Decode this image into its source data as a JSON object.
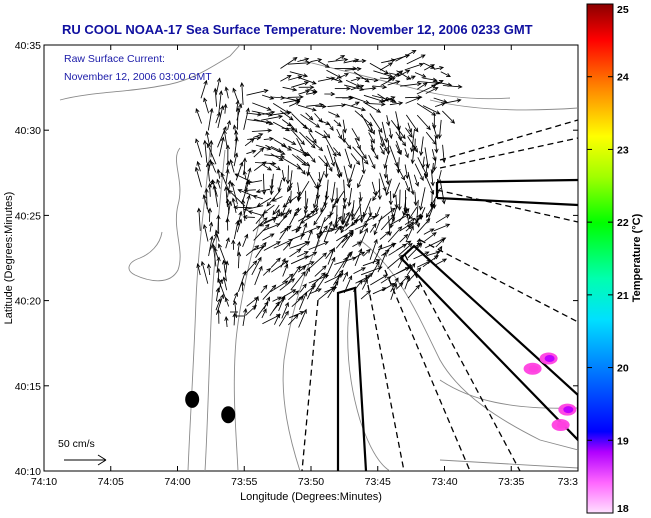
{
  "chart_data": {
    "type": "vector-field-map",
    "title": "RU COOL  NOAA-17  Sea Surface Temperature:  November 12, 2006 0233 GMT",
    "annotation": [
      "Raw Surface Current:",
      "November 12, 2006 03:00 GMT"
    ],
    "xlabel": "Longitude (Degrees:Minutes)",
    "ylabel": "Latitude (Degrees:Minutes)",
    "xlim": [
      -74.1667,
      -73.5
    ],
    "ylim": [
      40.1667,
      40.5833
    ],
    "x_ticks": [
      "74:10",
      "74:05",
      "74:00",
      "73:55",
      "73:50",
      "73:45",
      "73:40",
      "73:35",
      "73:3"
    ],
    "y_ticks": [
      "40:10",
      "40:15",
      "40:20",
      "40:25",
      "40:30",
      "40:35"
    ],
    "colorbar": {
      "label": "Temperature (°C)",
      "range": [
        18,
        25
      ],
      "ticks": [
        "18",
        "19",
        "20",
        "21",
        "22",
        "23",
        "24",
        "25"
      ]
    },
    "scale_arrow_label": "50 cm/s",
    "sst_patches": [
      {
        "lon": -73.5367,
        "lat": 40.2767,
        "temp_c": 18.6
      },
      {
        "lon": -73.5567,
        "lat": 40.2667,
        "temp_c": 18.4
      },
      {
        "lon": -73.5133,
        "lat": 40.2267,
        "temp_c": 18.8
      },
      {
        "lon": -73.5217,
        "lat": 40.2117,
        "temp_c": 18.4
      }
    ],
    "buoys": [
      {
        "lon": -73.9817,
        "lat": 40.2367
      },
      {
        "lon": -73.9367,
        "lat": 40.2217
      }
    ]
  },
  "colors": {
    "title": "#1010a0",
    "annotation": "#1a1aa8",
    "vectors": "#000000",
    "contours": "#8a8a8a"
  }
}
